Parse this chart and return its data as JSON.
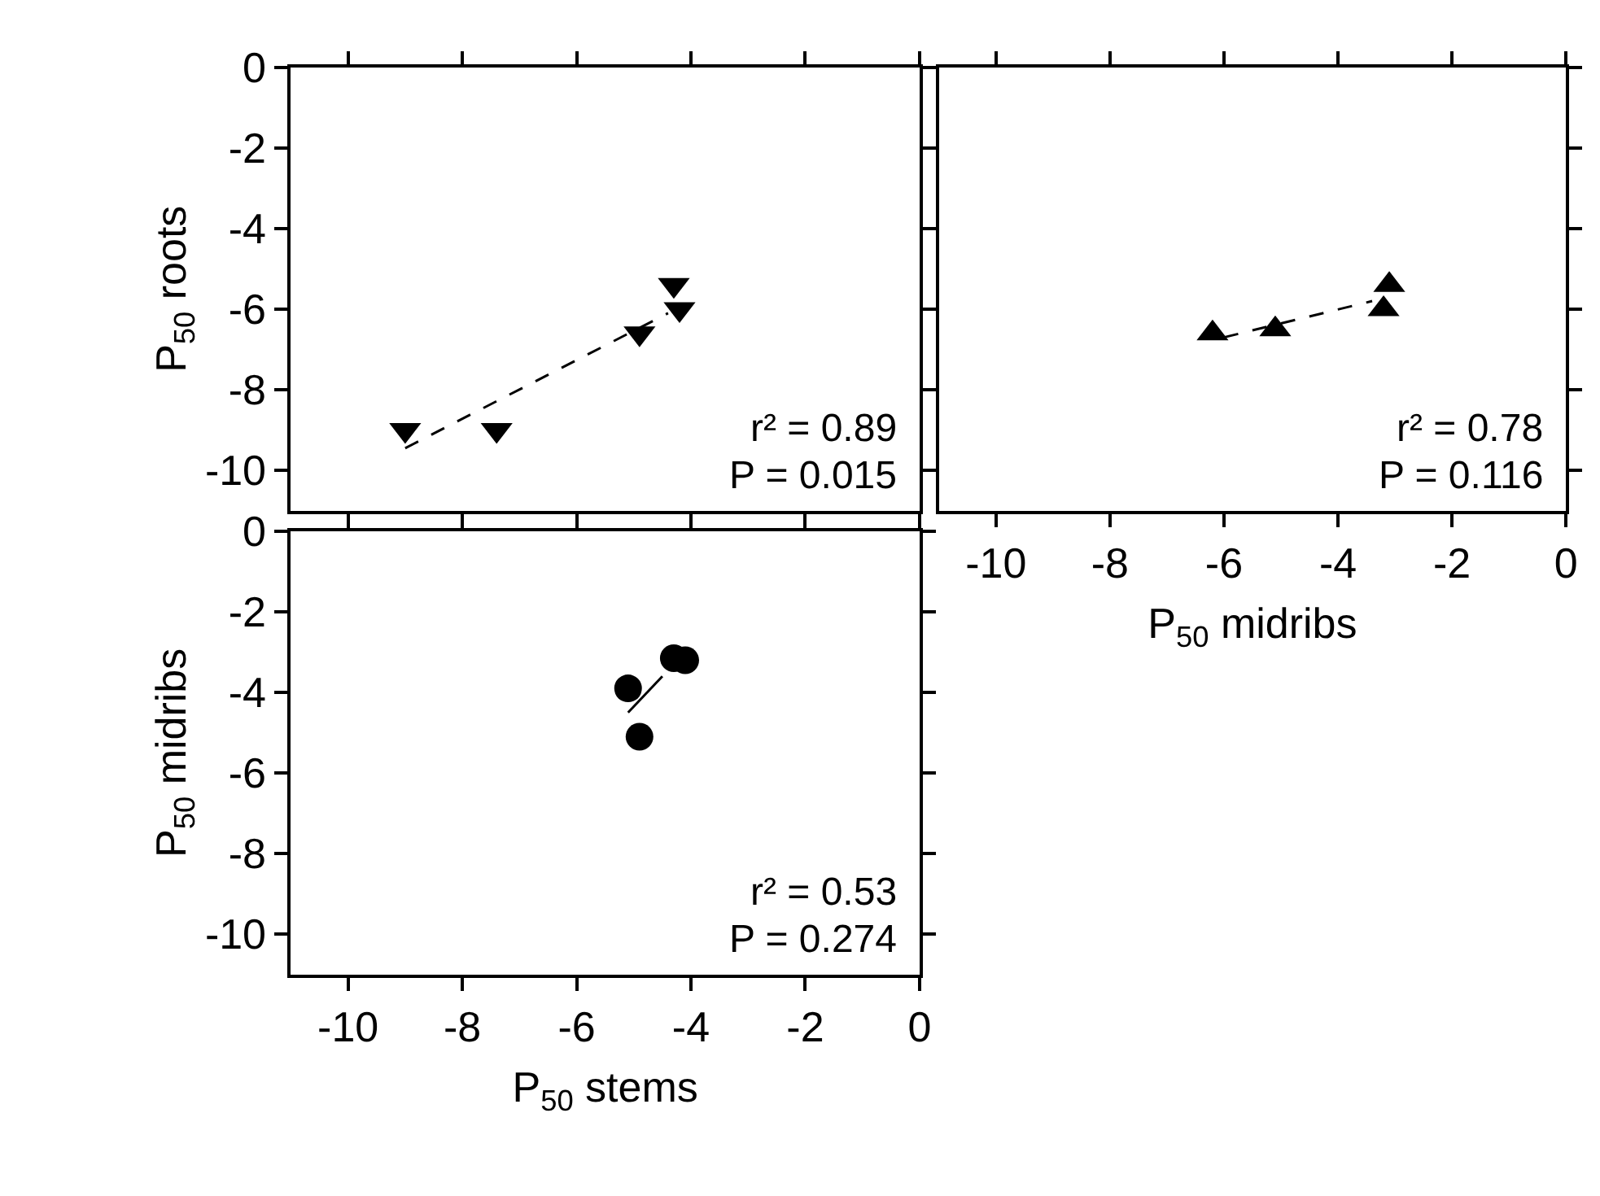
{
  "chart_data": [
    {
      "type": "scatter",
      "ylabel": "P$_{50}$ roots",
      "xlim": [
        -11,
        0
      ],
      "ylim": [
        -11,
        0
      ],
      "xticks": [
        -10,
        -8,
        -6,
        -4,
        -2,
        0
      ],
      "yticks": [
        -10,
        -8,
        -6,
        -4,
        -2,
        0
      ],
      "tick_labels": "y",
      "annotations": [
        "r² = 0.89",
        "P = 0.015"
      ],
      "series": [
        {
          "marker": "triangle-down",
          "color": "#000000",
          "x": [
            -9.0,
            -7.4,
            -4.9,
            -4.3,
            -4.2
          ],
          "values": [
            -9.0,
            -9.0,
            -6.6,
            -5.4,
            -6.0
          ]
        },
        {
          "type": "line",
          "line_style": "dashed",
          "color": "#000000",
          "x": [
            -9.0,
            -4.4
          ],
          "values": [
            -9.45,
            -6.1
          ]
        }
      ]
    },
    {
      "type": "scatter",
      "xlabel": "P$_{50}$ midribs",
      "xlim": [
        -11,
        0
      ],
      "ylim": [
        -11,
        0
      ],
      "xticks": [
        -10,
        -8,
        -6,
        -4,
        -2,
        0
      ],
      "yticks": [
        -10,
        -8,
        -6,
        -4,
        -2,
        0
      ],
      "tick_labels": "x",
      "annotations": [
        "r² = 0.78",
        "P = 0.116"
      ],
      "series": [
        {
          "marker": "triangle",
          "color": "#000000",
          "x": [
            -6.2,
            -5.1,
            -3.1,
            -3.2
          ],
          "values": [
            -6.6,
            -6.5,
            -5.4,
            -6.0
          ]
        },
        {
          "type": "line",
          "line_style": "dashed",
          "color": "#000000",
          "x": [
            -6.0,
            -3.4
          ],
          "values": [
            -6.7,
            -5.8
          ]
        }
      ]
    },
    {
      "type": "scatter",
      "xlabel": "P$_{50}$ stems",
      "ylabel": "P$_{50}$ midribs",
      "xlim": [
        -11,
        0
      ],
      "ylim": [
        -11,
        0
      ],
      "xticks": [
        -10,
        -8,
        -6,
        -4,
        -2,
        0
      ],
      "yticks": [
        -10,
        -8,
        -6,
        -4,
        -2,
        0
      ],
      "annotations": [
        "r² = 0.53",
        "P = 0.274"
      ],
      "series": [
        {
          "marker": "circle",
          "color": "#000000",
          "x": [
            -5.1,
            -4.9,
            -4.3,
            -4.1
          ],
          "values": [
            -3.9,
            -5.1,
            -3.15,
            -3.2
          ]
        },
        {
          "type": "line",
          "line_style": "solid",
          "color": "#000000",
          "x": [
            -5.1,
            -4.5
          ],
          "values": [
            -4.5,
            -3.6
          ]
        }
      ]
    }
  ]
}
